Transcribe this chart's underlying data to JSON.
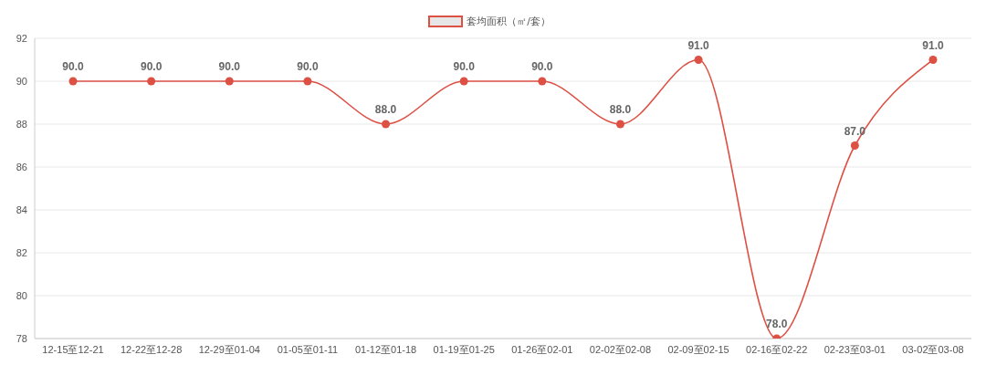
{
  "chart_data": {
    "type": "line",
    "categories": [
      "12-15至12-21",
      "12-22至12-28",
      "12-29至01-04",
      "01-05至01-11",
      "01-12至01-18",
      "01-19至01-25",
      "01-26至02-01",
      "02-02至02-08",
      "02-09至02-15",
      "02-16至02-22",
      "02-23至03-01",
      "03-02至03-08"
    ],
    "series": [
      {
        "name": "套均面积（㎡/套）",
        "color": "#dd5044",
        "values": [
          90,
          90,
          90,
          90,
          88,
          90,
          90,
          88,
          91,
          78,
          87,
          91
        ],
        "value_labels": [
          "90.0",
          "90.0",
          "90.0",
          "90.0",
          "88.0",
          "90.0",
          "90.0",
          "88.0",
          "91.0",
          "78.0",
          "87.0",
          "91.0"
        ]
      }
    ],
    "ylim": [
      78,
      92
    ],
    "yticks": [
      78,
      80,
      82,
      84,
      86,
      88,
      90,
      92
    ],
    "grid": "y",
    "legend": "top",
    "marker": "circle",
    "line_style": "solid"
  }
}
